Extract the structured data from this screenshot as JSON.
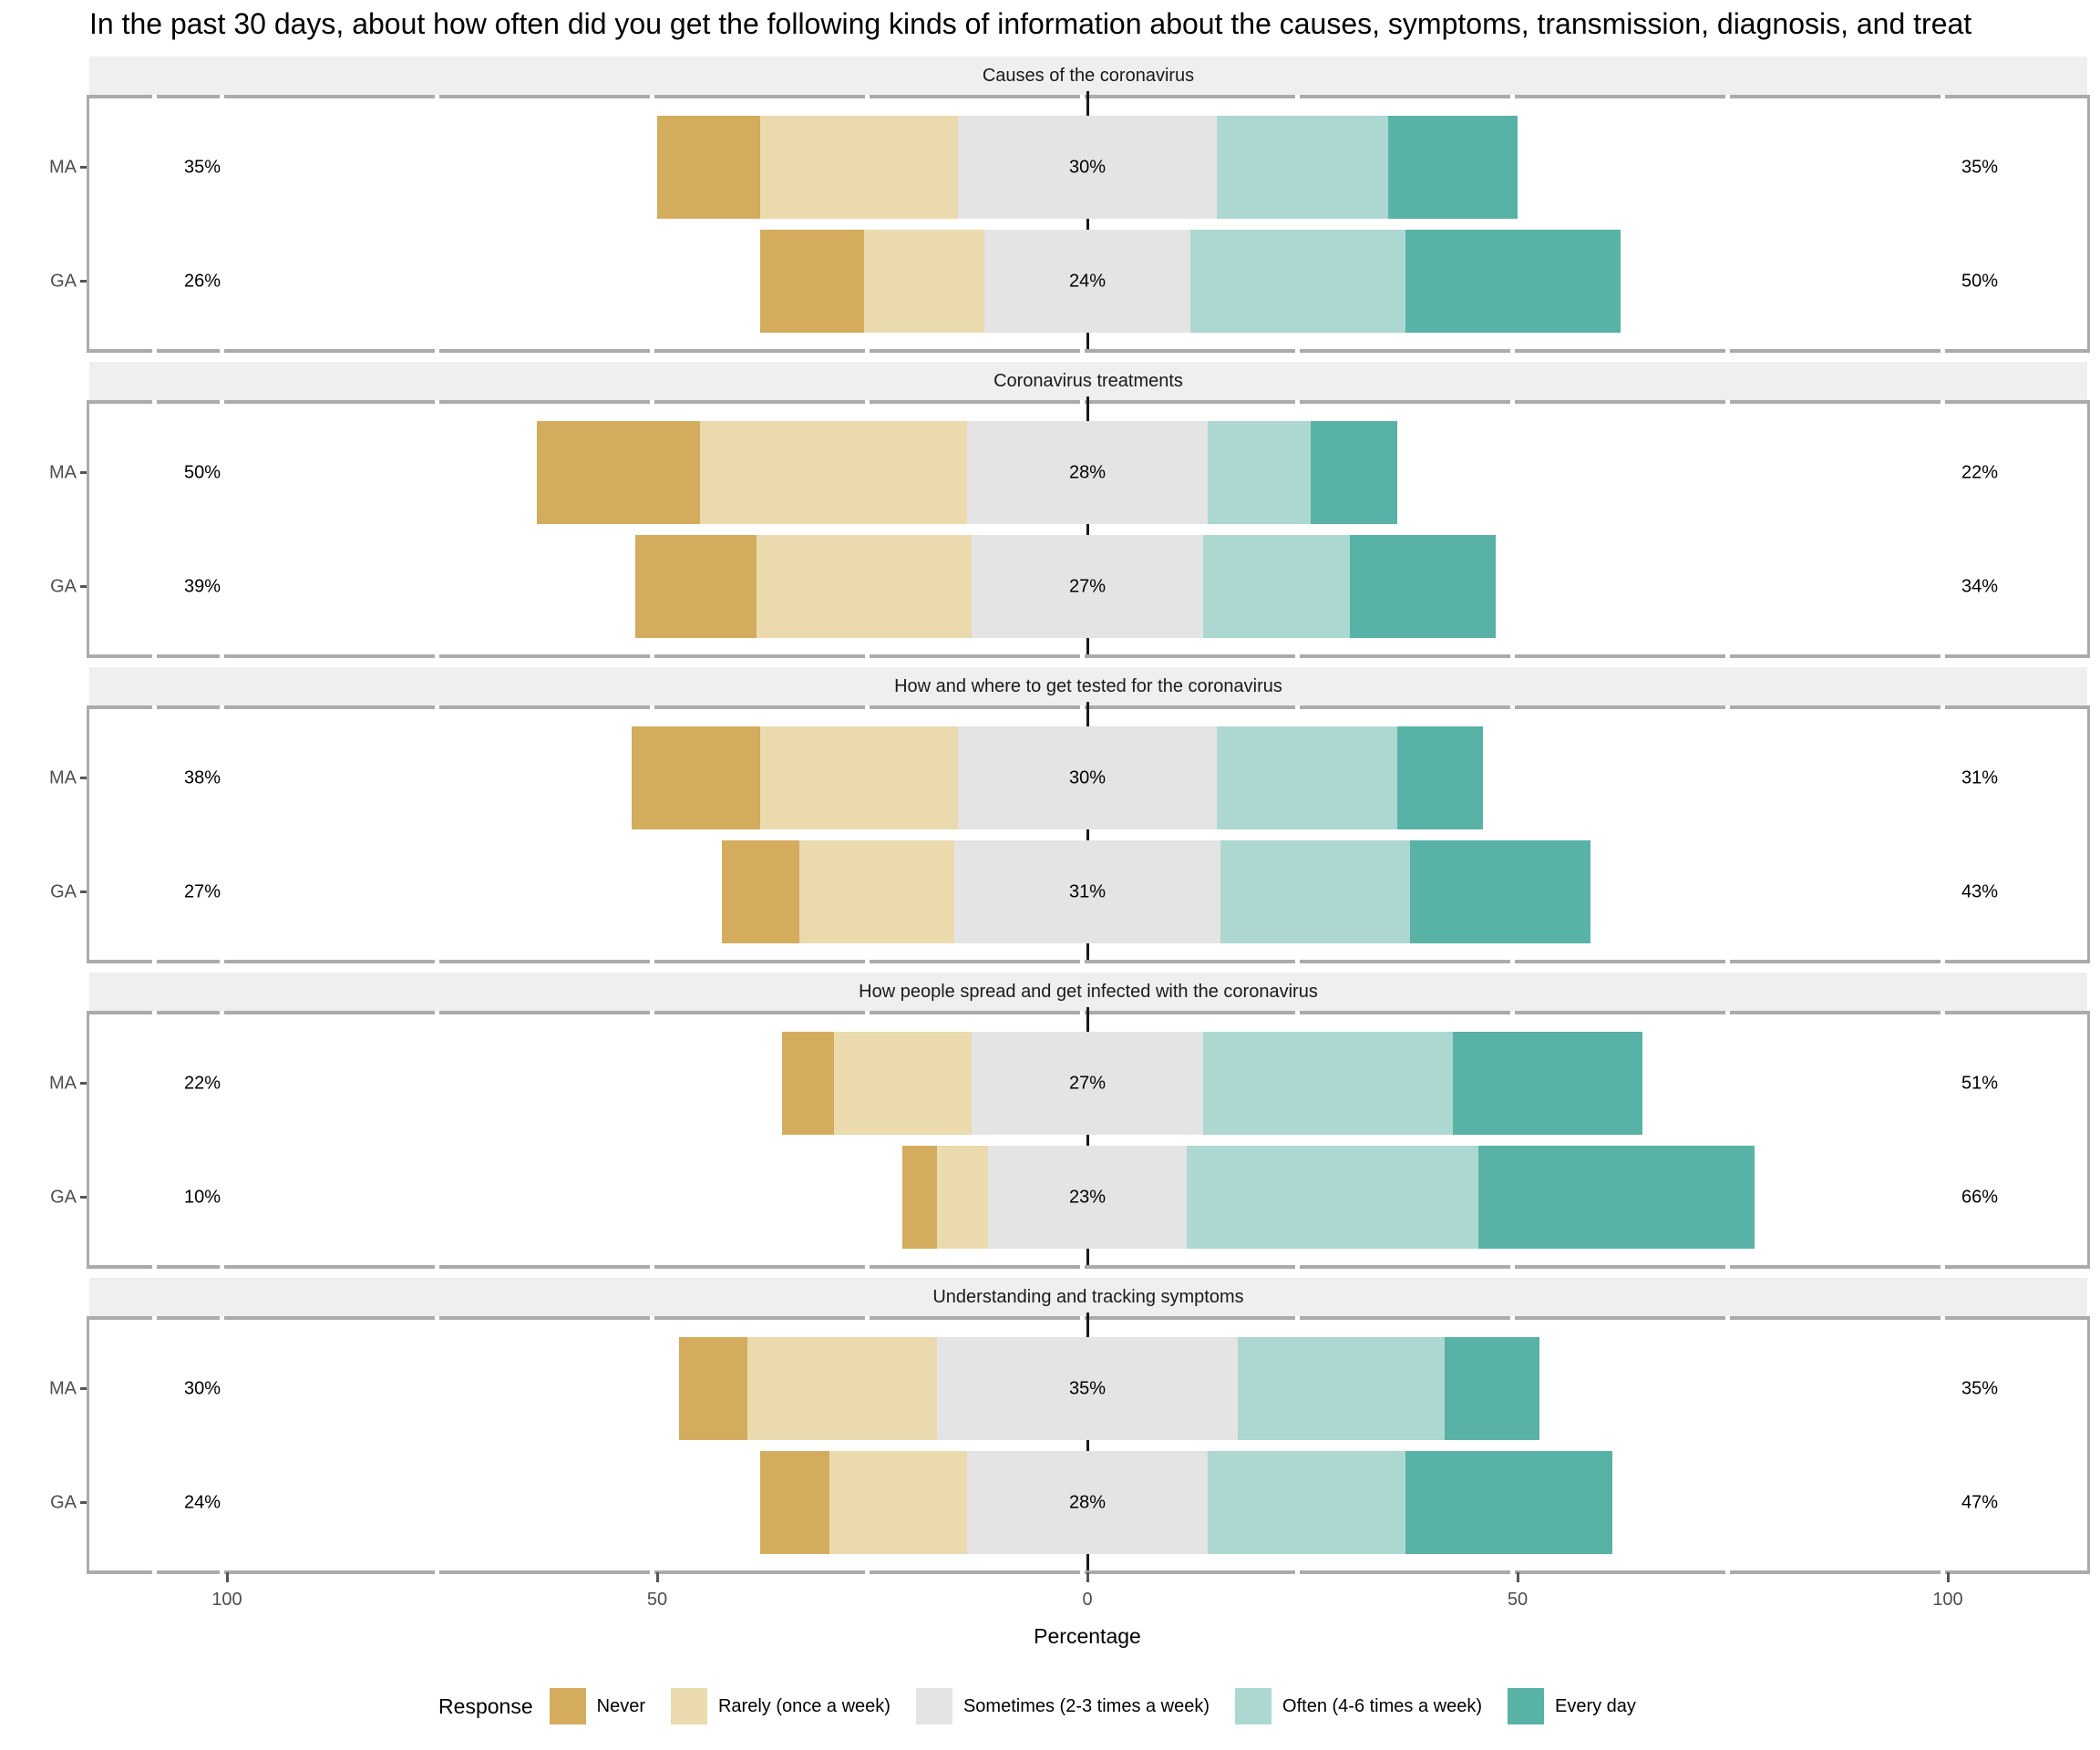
{
  "title": "In the past 30 days, about how often did you get the following kinds of information about the causes, symptoms, transmission, diagnosis, and treat",
  "axis": {
    "xlabel": "Percentage",
    "ticks": [
      {
        "label": "100",
        "value": -100
      },
      {
        "label": "50",
        "value": -50
      },
      {
        "label": "0",
        "value": 0
      },
      {
        "label": "50",
        "value": 50
      },
      {
        "label": "100",
        "value": 100
      }
    ]
  },
  "legend": {
    "title": "Response",
    "items": [
      {
        "label": "Never",
        "color": "#D4AC5E"
      },
      {
        "label": "Rarely (once a week)",
        "color": "#EBDAAD"
      },
      {
        "label": "Sometimes (2-3 times a week)",
        "color": "#E4E4E4"
      },
      {
        "label": "Often (4-6 times a week)",
        "color": "#ACD8D1"
      },
      {
        "label": "Every day",
        "color": "#58B2A6"
      }
    ]
  },
  "chart_data": {
    "type": "diverging-stacked-bar",
    "note": "Likert-style centered stacked bars; Sometimes category split evenly across zero; values are percentages",
    "levels": [
      "Never",
      "Rarely (once a week)",
      "Sometimes (2-3 times a week)",
      "Often (4-6 times a week)",
      "Every day"
    ],
    "colors": [
      "#D4AC5E",
      "#EBDAAD",
      "#E4E4E4",
      "#ACD8D1",
      "#58B2A6"
    ],
    "xlabel": "Percentage",
    "xlim": [
      -116,
      116
    ],
    "grid": false,
    "legend_position": "bottom",
    "panels": [
      {
        "title": "Causes of the coronavirus",
        "rows": [
          {
            "group": "MA",
            "values": [
              12,
              23,
              30,
              20,
              15
            ],
            "left_label": "35%",
            "center_label": "30%",
            "right_label": "35%"
          },
          {
            "group": "GA",
            "values": [
              12,
              14,
              24,
              25,
              25
            ],
            "left_label": "26%",
            "center_label": "24%",
            "right_label": "50%"
          }
        ]
      },
      {
        "title": "Coronavirus treatments",
        "rows": [
          {
            "group": "MA",
            "values": [
              19,
              31,
              28,
              12,
              10
            ],
            "left_label": "50%",
            "center_label": "28%",
            "right_label": "22%"
          },
          {
            "group": "GA",
            "values": [
              14,
              25,
              27,
              17,
              17
            ],
            "left_label": "39%",
            "center_label": "27%",
            "right_label": "34%"
          }
        ]
      },
      {
        "title": "How and where to get tested for the coronavirus",
        "rows": [
          {
            "group": "MA",
            "values": [
              15,
              23,
              30,
              21,
              10
            ],
            "left_label": "38%",
            "center_label": "30%",
            "right_label": "31%"
          },
          {
            "group": "GA",
            "values": [
              9,
              18,
              31,
              22,
              21
            ],
            "left_label": "27%",
            "center_label": "31%",
            "right_label": "43%"
          }
        ]
      },
      {
        "title": "How people spread and get infected with the coronavirus",
        "rows": [
          {
            "group": "MA",
            "values": [
              6,
              16,
              27,
              29,
              22
            ],
            "left_label": "22%",
            "center_label": "27%",
            "right_label": "51%"
          },
          {
            "group": "GA",
            "values": [
              4,
              6,
              23,
              34,
              32
            ],
            "left_label": "10%",
            "center_label": "23%",
            "right_label": "66%"
          }
        ]
      },
      {
        "title": "Understanding and tracking symptoms",
        "rows": [
          {
            "group": "MA",
            "values": [
              8,
              22,
              35,
              24,
              11
            ],
            "left_label": "30%",
            "center_label": "35%",
            "right_label": "35%"
          },
          {
            "group": "GA",
            "values": [
              8,
              16,
              28,
              23,
              24
            ],
            "left_label": "24%",
            "center_label": "28%",
            "right_label": "47%"
          }
        ]
      }
    ]
  }
}
